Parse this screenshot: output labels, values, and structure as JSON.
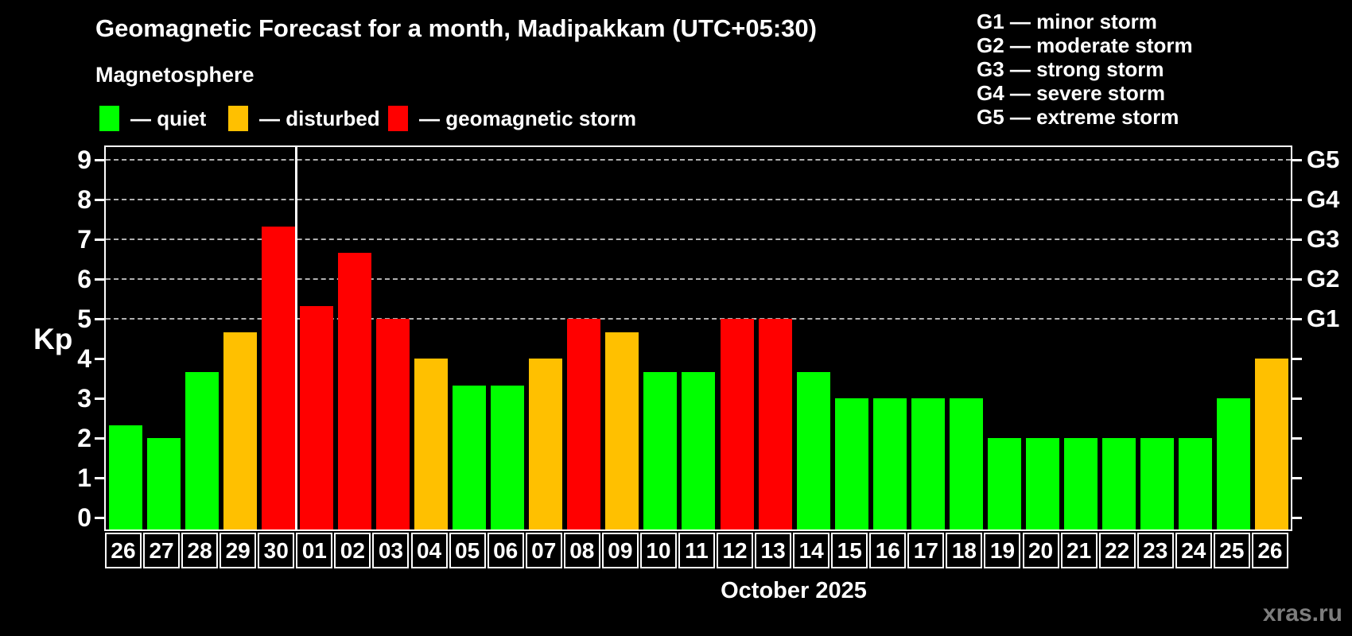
{
  "header": {
    "title": "Geomagnetic Forecast for a month, Madipakkam (UTC+05:30)",
    "area_label": "Magnetosphere"
  },
  "legend": {
    "items": [
      {
        "status": "quiet",
        "label": "— quiet",
        "color": "#00ff00"
      },
      {
        "status": "disturbed",
        "label": "— disturbed",
        "color": "#ffc000"
      },
      {
        "status": "storm",
        "label": "— geomagnetic storm",
        "color": "#ff0000"
      }
    ]
  },
  "g_scale_legend": {
    "items": [
      "G1 — minor storm",
      "G2 — moderate storm",
      "G3 — strong storm",
      "G4 — severe storm",
      "G5 — extreme storm"
    ]
  },
  "axis": {
    "kp_label": "Kp",
    "x_title": "October 2025"
  },
  "watermark": "xras.ru",
  "colors": {
    "quiet": "#00ff00",
    "disturbed": "#ffc000",
    "storm": "#ff0000",
    "background": "#000000",
    "text": "#ffffff",
    "grid": "#b0b0b0",
    "month_separator": "#ffffff",
    "watermark": "#7d7d7d"
  },
  "chart_data": {
    "type": "bar",
    "title": "Geomagnetic Forecast for a month, Madipakkam (UTC+05:30)",
    "subtitle": "Magnetosphere",
    "xlabel": "October 2025",
    "ylabel": "Kp",
    "ylim": [
      0,
      9
    ],
    "grid": "horizontal dashed lines at Kp 5,6,7,8,9 (G1..G5)",
    "legend_position": "top",
    "categories": [
      "26",
      "27",
      "28",
      "29",
      "30",
      "01",
      "02",
      "03",
      "04",
      "05",
      "06",
      "07",
      "08",
      "09",
      "10",
      "11",
      "12",
      "13",
      "14",
      "15",
      "16",
      "17",
      "18",
      "19",
      "20",
      "21",
      "22",
      "23",
      "24",
      "25",
      "26"
    ],
    "values": [
      2.33,
      2,
      3.67,
      4.67,
      7.33,
      5.33,
      6.67,
      5,
      4,
      3.33,
      3.33,
      4,
      5,
      4.67,
      3.67,
      3.67,
      5,
      5,
      3.67,
      3,
      3,
      3,
      3,
      2,
      2,
      2,
      2,
      2,
      2,
      3,
      4
    ],
    "statuses": [
      "quiet",
      "quiet",
      "quiet",
      "disturbed",
      "storm",
      "storm",
      "storm",
      "storm",
      "disturbed",
      "quiet",
      "quiet",
      "disturbed",
      "storm",
      "disturbed",
      "quiet",
      "quiet",
      "storm",
      "storm",
      "quiet",
      "quiet",
      "quiet",
      "quiet",
      "quiet",
      "quiet",
      "quiet",
      "quiet",
      "quiet",
      "quiet",
      "quiet",
      "quiet",
      "disturbed"
    ],
    "month_separator_after_index": 4,
    "y_ticks_left": [
      "0",
      "1",
      "2",
      "3",
      "4",
      "5",
      "6",
      "7",
      "8",
      "9"
    ],
    "y_ticks_right_labels": {
      "5": "G1",
      "6": "G2",
      "7": "G3",
      "8": "G4",
      "9": "G5"
    }
  }
}
